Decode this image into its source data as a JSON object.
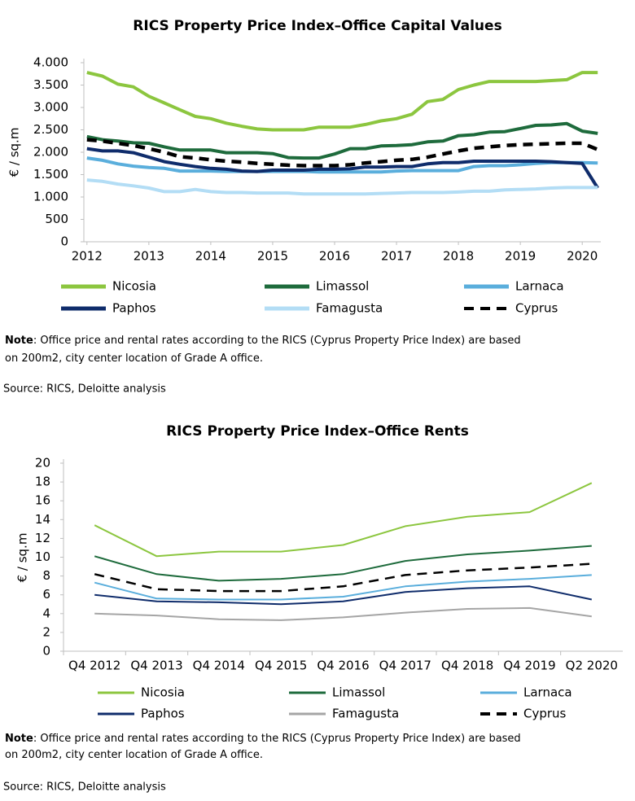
{
  "chart_data": [
    {
      "type": "line",
      "title": "RICS Property Price Index–Office Capital Values",
      "y_label": "€ / sq.m",
      "x": [
        2012,
        2012.25,
        2012.5,
        2012.75,
        2013,
        2013.25,
        2013.5,
        2013.75,
        2014,
        2014.25,
        2014.5,
        2014.75,
        2015,
        2015.25,
        2015.5,
        2015.75,
        2016,
        2016.25,
        2016.5,
        2016.75,
        2017,
        2017.25,
        2017.5,
        2017.75,
        2018,
        2018.25,
        2018.5,
        2018.75,
        2019,
        2019.25,
        2019.5,
        2019.75,
        2020,
        2020.25
      ],
      "xlim": [
        2011.95,
        2020.3
      ],
      "xticks": [
        2012,
        2013,
        2014,
        2015,
        2016,
        2017,
        2018,
        2019,
        2020
      ],
      "ylim": [
        0,
        4000
      ],
      "yticks": [
        0,
        500,
        {
          "value": 1000,
          "label": "1.000"
        },
        {
          "value": 1500,
          "label": "1.500"
        },
        {
          "value": 2000,
          "label": "2.000"
        },
        {
          "value": 2500,
          "label": "2.500"
        },
        {
          "value": 3000,
          "label": "3.000"
        },
        {
          "value": 3500,
          "label": "3.500"
        },
        {
          "value": 4000,
          "label": "4.000"
        }
      ],
      "series": [
        {
          "name": "Nicosia",
          "color": "#8cc63f",
          "values": [
            3780,
            3700,
            3520,
            3460,
            3250,
            3100,
            2950,
            2800,
            2750,
            2650,
            2580,
            2520,
            2500,
            2500,
            2500,
            2560,
            2560,
            2560,
            2620,
            2700,
            2750,
            2850,
            3130,
            3180,
            3400,
            3500,
            3580,
            3580,
            3580,
            3580,
            3600,
            3620,
            3780,
            3780
          ]
        },
        {
          "name": "Limassol",
          "color": "#1e6b3c",
          "values": [
            2350,
            2280,
            2250,
            2210,
            2200,
            2120,
            2050,
            2050,
            2050,
            1990,
            1990,
            1990,
            1970,
            1880,
            1870,
            1870,
            1960,
            2080,
            2080,
            2140,
            2150,
            2170,
            2230,
            2250,
            2370,
            2390,
            2450,
            2460,
            2530,
            2600,
            2610,
            2640,
            2470,
            2420
          ]
        },
        {
          "name": "Larnaca",
          "color": "#5aaedc",
          "values": [
            1870,
            1820,
            1740,
            1690,
            1660,
            1640,
            1580,
            1580,
            1580,
            1570,
            1570,
            1570,
            1570,
            1570,
            1570,
            1560,
            1560,
            1560,
            1560,
            1560,
            1580,
            1590,
            1590,
            1590,
            1590,
            1680,
            1700,
            1700,
            1720,
            1750,
            1770,
            1770,
            1770,
            1760
          ]
        },
        {
          "name": "Paphos",
          "color": "#0f2c6b",
          "values": [
            2080,
            2030,
            2030,
            1990,
            1890,
            1790,
            1730,
            1680,
            1640,
            1620,
            1580,
            1570,
            1600,
            1600,
            1600,
            1620,
            1620,
            1630,
            1670,
            1670,
            1680,
            1680,
            1740,
            1770,
            1770,
            1800,
            1800,
            1800,
            1800,
            1800,
            1790,
            1770,
            1750,
            1200
          ]
        },
        {
          "name": "Famagusta",
          "color": "#b3ddf5",
          "values": [
            1380,
            1350,
            1290,
            1250,
            1200,
            1120,
            1120,
            1170,
            1120,
            1100,
            1100,
            1090,
            1090,
            1090,
            1070,
            1070,
            1070,
            1070,
            1070,
            1080,
            1090,
            1100,
            1100,
            1100,
            1110,
            1130,
            1130,
            1160,
            1170,
            1180,
            1200,
            1210,
            1210,
            1210
          ]
        },
        {
          "name": "Cyprus",
          "color": "#000000",
          "dash": "dashed",
          "values": [
            2280,
            2250,
            2200,
            2150,
            2080,
            2000,
            1900,
            1870,
            1830,
            1800,
            1780,
            1750,
            1730,
            1710,
            1700,
            1700,
            1700,
            1720,
            1760,
            1790,
            1820,
            1840,
            1890,
            1960,
            2030,
            2090,
            2120,
            2150,
            2170,
            2180,
            2190,
            2200,
            2200,
            2060
          ]
        }
      ],
      "note_label": "Note",
      "note": [
        ": Office price and rental rates according to the RICS (Cyprus Property Price Index) are based",
        "on 200m2, city center location of Grade A office."
      ],
      "source": "Source: RICS, Deloitte analysis"
    },
    {
      "type": "line",
      "title": "RICS Property Price Index–Office Rents",
      "y_label": "€ / sq.m",
      "categories": [
        "Q4 2012",
        "Q4 2013",
        "Q4 2014",
        "Q4 2015",
        "Q4 2016",
        "Q4 2017",
        "Q4 2018",
        "Q4 2019",
        "Q2 2020"
      ],
      "ylim": [
        0,
        20
      ],
      "yticks": [
        0,
        2,
        4,
        6,
        8,
        10,
        12,
        14,
        16,
        18,
        20
      ],
      "series": [
        {
          "name": "Nicosia",
          "color": "#8cc63f",
          "values": [
            13.4,
            10.1,
            10.6,
            10.6,
            11.3,
            13.3,
            14.3,
            14.8,
            17.9
          ]
        },
        {
          "name": "Limassol",
          "color": "#1e6b3c",
          "values": [
            10.1,
            8.2,
            7.5,
            7.7,
            8.2,
            9.6,
            10.3,
            10.7,
            11.2
          ]
        },
        {
          "name": "Larnaca",
          "color": "#5aaedc",
          "values": [
            7.3,
            5.6,
            5.5,
            5.5,
            5.8,
            6.9,
            7.4,
            7.7,
            8.1
          ]
        },
        {
          "name": "Paphos",
          "color": "#0f2c6b",
          "values": [
            6.0,
            5.3,
            5.2,
            5.0,
            5.3,
            6.3,
            6.7,
            6.9,
            5.5
          ]
        },
        {
          "name": "Famagusta",
          "color": "#a5a5a5",
          "values": [
            4.0,
            3.8,
            3.4,
            3.3,
            3.6,
            4.1,
            4.5,
            4.6,
            3.7
          ]
        },
        {
          "name": "Cyprus",
          "color": "#000000",
          "dash": "dashed",
          "values": [
            8.2,
            6.6,
            6.4,
            6.4,
            6.9,
            8.1,
            8.6,
            8.9,
            9.3
          ]
        }
      ],
      "note_label": "Note",
      "note": [
        ": Office price and rental rates according to the RICS (Cyprus Property Price Index) are based",
        "on 200m2, city center location of Grade A office."
      ],
      "source": "Source: RICS, Deloitte analysis"
    }
  ]
}
